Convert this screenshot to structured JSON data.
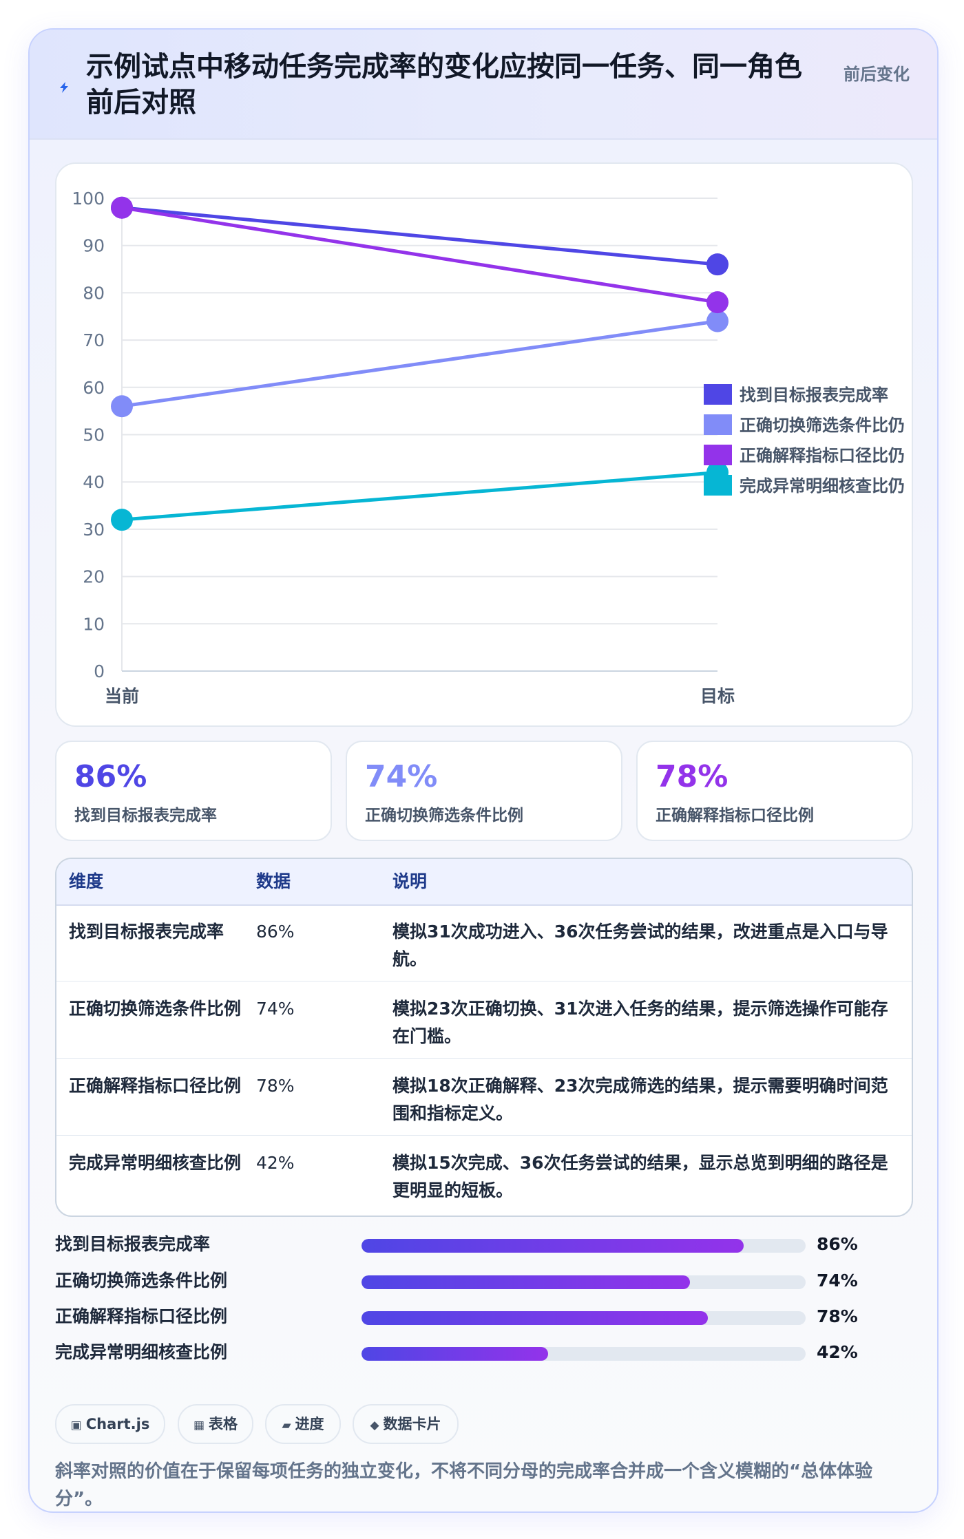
{
  "header": {
    "icon": "lightning-icon",
    "title": "示例试点中移动任务完成率的变化应按同一任务、同一角色前后对照",
    "tag": "前后变化"
  },
  "chart_data": {
    "type": "line",
    "x": [
      "当前",
      "目标"
    ],
    "ylim": [
      0,
      100
    ],
    "yticks": [
      0,
      10,
      20,
      30,
      40,
      50,
      60,
      70,
      80,
      90,
      100
    ],
    "grid": true,
    "legend_position": "right",
    "series": [
      {
        "name": "找到目标报表完成率",
        "values": [
          98,
          86
        ],
        "color": "#4f46e5"
      },
      {
        "name": "正确切换筛选条件比例",
        "values": [
          56,
          74
        ],
        "color": "#818cf8"
      },
      {
        "name": "正确解释指标口径比例",
        "values": [
          98,
          78
        ],
        "color": "#9333ea"
      },
      {
        "name": "完成异常明细核查比例",
        "values": [
          32,
          42
        ],
        "color": "#06b6d4"
      }
    ],
    "legend_labels": [
      "找到目标报表完成率",
      "正确切换筛选条件比仍",
      "正确解释指标口径比仍",
      "完成异常明细核查比仍"
    ]
  },
  "kpis": [
    {
      "value": "86%",
      "label": "找到目标报表完成率",
      "color": "#4f46e5"
    },
    {
      "value": "74%",
      "label": "正确切换筛选条件比例",
      "color": "#818cf8"
    },
    {
      "value": "78%",
      "label": "正确解释指标口径比例",
      "color": "#9333ea"
    }
  ],
  "table": {
    "headers": [
      "维度",
      "数据",
      "说明"
    ],
    "rows": [
      {
        "dim": "找到目标报表完成率",
        "data": "86%",
        "note": "模拟31次成功进入、36次任务尝试的结果，改进重点是入口与导航。"
      },
      {
        "dim": "正确切换筛选条件比例",
        "data": "74%",
        "note": "模拟23次正确切换、31次进入任务的结果，提示筛选操作可能存在门槛。"
      },
      {
        "dim": "正确解释指标口径比例",
        "data": "78%",
        "note": "模拟18次正确解释、23次完成筛选的结果，提示需要明确时间范围和指标定义。"
      },
      {
        "dim": "完成异常明细核查比例",
        "data": "42%",
        "note": "模拟15次完成、36次任务尝试的结果，显示总览到明细的路径是更明显的短板。"
      }
    ]
  },
  "progress": [
    {
      "label": "找到目标报表完成率",
      "value": 0.86,
      "text": "86%"
    },
    {
      "label": "正确切换筛选条件比例",
      "value": 0.74,
      "text": "74%"
    },
    {
      "label": "正确解释指标口径比例",
      "value": 0.78,
      "text": "78%"
    },
    {
      "label": "完成异常明细核查比例",
      "value": 0.42,
      "text": "42%"
    }
  ],
  "chips": [
    {
      "icon": "▣",
      "icon_name": "chart-icon",
      "label": "Chart.js"
    },
    {
      "icon": "▦",
      "icon_name": "table-icon",
      "label": "表格"
    },
    {
      "icon": "▰",
      "icon_name": "progress-icon",
      "label": "进度"
    },
    {
      "icon": "◆",
      "icon_name": "diamond-icon",
      "label": "数据卡片"
    }
  ],
  "footnote": "斜率对照的价值在于保留每项任务的独立变化，不将不同分母的完成率合并成一个含义模糊的“总体体验分”。"
}
